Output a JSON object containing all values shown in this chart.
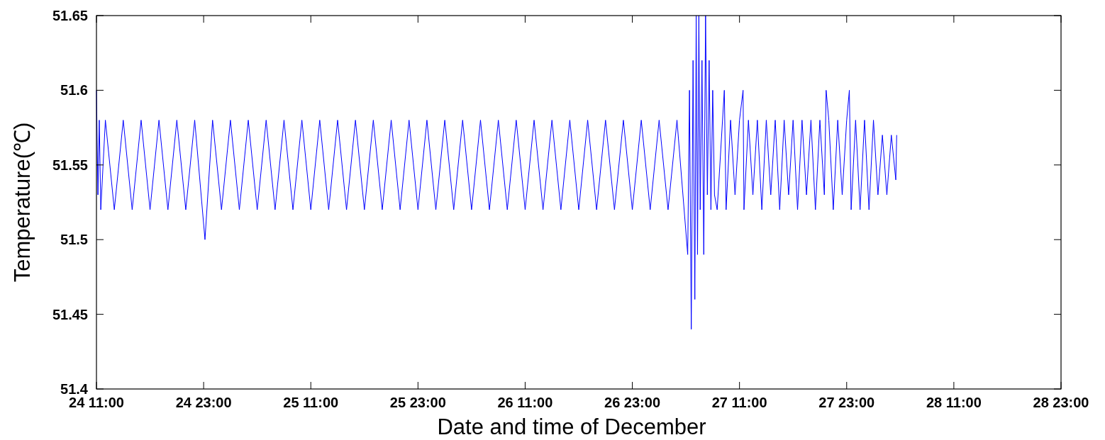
{
  "chart_data": {
    "type": "line",
    "xlabel": "Date and time of December",
    "ylabel": "Temperature(℃)",
    "xlim": [
      "--12-24T11:00",
      "--12-28T23:00"
    ],
    "xticks": [
      {
        "value": "--12-24T11:00",
        "label": "24 11:00"
      },
      {
        "value": "--12-24T23:00",
        "label": "24 23:00"
      },
      {
        "value": "--12-25T11:00",
        "label": "25 11:00"
      },
      {
        "value": "--12-25T23:00",
        "label": "25 23:00"
      },
      {
        "value": "--12-26T11:00",
        "label": "26 11:00"
      },
      {
        "value": "--12-26T23:00",
        "label": "26 23:00"
      },
      {
        "value": "--12-27T11:00",
        "label": "27 11:00"
      },
      {
        "value": "--12-27T23:00",
        "label": "27 23:00"
      },
      {
        "value": "--12-28T11:00",
        "label": "28 11:00"
      },
      {
        "value": "--12-28T23:00",
        "label": "28 23:00"
      }
    ],
    "ylim": [
      51.4,
      51.65
    ],
    "yticks": [
      51.4,
      51.45,
      51.5,
      51.55,
      51.6,
      51.65
    ],
    "grid": false,
    "series": [
      {
        "color": "#0000ff",
        "x": [
          "--12-24T11:00",
          "--12-24T11:10",
          "--12-24T11:19",
          "--12-24T11:29",
          "--12-24T12:00",
          "--12-24T13:00",
          "--12-24T14:00",
          "--12-24T15:00",
          "--12-24T16:00",
          "--12-24T17:00",
          "--12-24T18:00",
          "--12-24T19:00",
          "--12-24T20:00",
          "--12-24T21:00",
          "--12-24T22:00",
          "--12-24T23:09",
          "--12-25T00:00",
          "--12-25T01:00",
          "--12-25T02:00",
          "--12-25T03:00",
          "--12-25T04:00",
          "--12-25T05:00",
          "--12-25T06:00",
          "--12-25T07:00",
          "--12-25T08:00",
          "--12-25T09:00",
          "--12-25T10:00",
          "--12-25T11:00",
          "--12-25T12:00",
          "--12-25T13:00",
          "--12-25T14:00",
          "--12-25T15:00",
          "--12-25T16:00",
          "--12-25T17:00",
          "--12-25T18:00",
          "--12-25T19:00",
          "--12-25T20:00",
          "--12-25T21:00",
          "--12-25T22:00",
          "--12-25T23:00",
          "--12-26T00:00",
          "--12-26T01:00",
          "--12-26T02:00",
          "--12-26T03:00",
          "--12-26T04:00",
          "--12-26T05:00",
          "--12-26T06:00",
          "--12-26T07:00",
          "--12-26T08:00",
          "--12-26T09:00",
          "--12-26T10:00",
          "--12-26T11:00",
          "--12-26T12:00",
          "--12-26T13:00",
          "--12-26T14:00",
          "--12-26T15:00",
          "--12-26T16:00",
          "--12-26T17:00",
          "--12-26T18:00",
          "--12-26T19:00",
          "--12-26T20:00",
          "--12-26T21:00",
          "--12-26T22:00",
          "--12-26T23:00",
          "--12-27T00:00",
          "--12-27T01:00",
          "--12-27T02:00",
          "--12-27T03:00",
          "--12-27T04:00",
          "--12-27T05:12",
          "--12-27T05:24",
          "--12-27T05:36",
          "--12-27T05:48",
          "--12-27T06:00",
          "--12-27T06:09",
          "--12-27T06:18",
          "--12-27T06:27",
          "--12-27T06:36",
          "--12-27T06:48",
          "--12-27T07:00",
          "--12-27T07:12",
          "--12-27T07:24",
          "--12-27T07:36",
          "--12-27T07:48",
          "--12-27T08:00",
          "--12-27T08:12",
          "--12-27T08:30",
          "--12-27T09:18",
          "--12-27T09:30",
          "--12-27T10:00",
          "--12-27T10:30",
          "--12-27T11:00",
          "--12-27T11:24",
          "--12-27T11:30",
          "--12-27T12:00",
          "--12-27T12:30",
          "--12-27T13:00",
          "--12-27T13:30",
          "--12-27T14:00",
          "--12-27T14:30",
          "--12-27T15:00",
          "--12-27T15:30",
          "--12-27T16:00",
          "--12-27T16:30",
          "--12-27T17:00",
          "--12-27T17:30",
          "--12-27T18:00",
          "--12-27T18:30",
          "--12-27T19:00",
          "--12-27T19:30",
          "--12-27T20:00",
          "--12-27T20:30",
          "--12-27T20:42",
          "--12-27T21:00",
          "--12-27T21:30",
          "--12-27T22:00",
          "--12-27T22:30",
          "--12-27T23:00",
          "--12-27T23:18",
          "--12-27T23:30",
          "--12-28T00:00",
          "--12-28T00:30",
          "--12-28T01:00",
          "--12-28T01:30",
          "--12-28T02:00",
          "--12-28T02:30",
          "--12-28T03:00",
          "--12-28T03:30",
          "--12-28T04:00",
          "--12-28T04:30",
          "--12-28T04:36"
        ],
        "values": [
          51.6,
          51.53,
          51.58,
          51.52,
          51.58,
          51.52,
          51.58,
          51.52,
          51.58,
          51.52,
          51.58,
          51.52,
          51.58,
          51.52,
          51.58,
          51.5,
          51.58,
          51.52,
          51.58,
          51.52,
          51.58,
          51.52,
          51.58,
          51.52,
          51.58,
          51.52,
          51.58,
          51.52,
          51.58,
          51.52,
          51.58,
          51.52,
          51.58,
          51.52,
          51.58,
          51.52,
          51.58,
          51.52,
          51.58,
          51.52,
          51.58,
          51.52,
          51.58,
          51.52,
          51.58,
          51.52,
          51.58,
          51.52,
          51.58,
          51.52,
          51.58,
          51.52,
          51.58,
          51.52,
          51.58,
          51.52,
          51.58,
          51.52,
          51.58,
          51.52,
          51.58,
          51.52,
          51.58,
          51.52,
          51.58,
          51.52,
          51.58,
          51.52,
          51.58,
          51.49,
          51.6,
          51.44,
          51.62,
          51.46,
          51.65,
          51.49,
          51.65,
          51.52,
          51.62,
          51.49,
          51.65,
          51.53,
          51.62,
          51.52,
          51.6,
          51.53,
          51.52,
          51.6,
          51.52,
          51.58,
          51.53,
          51.58,
          51.6,
          51.52,
          51.58,
          51.53,
          51.58,
          51.52,
          51.58,
          51.53,
          51.58,
          51.52,
          51.58,
          51.53,
          51.58,
          51.52,
          51.58,
          51.53,
          51.58,
          51.52,
          51.58,
          51.53,
          51.6,
          51.58,
          51.52,
          51.58,
          51.53,
          51.58,
          51.6,
          51.52,
          51.58,
          51.52,
          51.58,
          51.52,
          51.58,
          51.53,
          51.57,
          51.53,
          51.57,
          51.54,
          51.57
        ]
      }
    ]
  }
}
